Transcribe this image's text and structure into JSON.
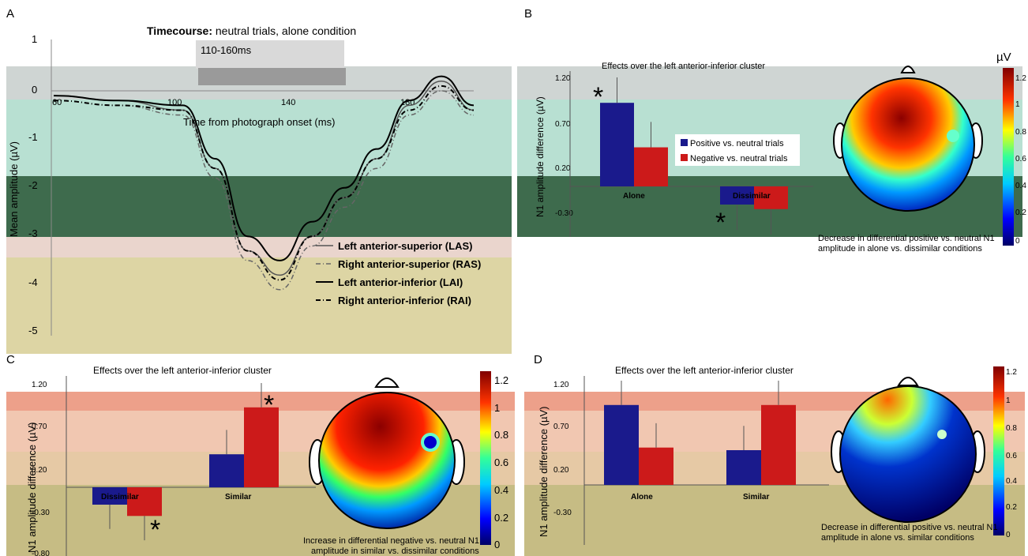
{
  "panels": {
    "A": {
      "label": "A",
      "title_bold": "Timecourse:",
      "title_rest": " neutral trials, alone condition",
      "window_label": "110-160ms",
      "ylabel": "Mean amplitude (µV)",
      "xlabel": "Time from photograph onset (ms)",
      "yticks": [
        "1",
        "0",
        "-1",
        "-2",
        "-3",
        "-4",
        "-5"
      ],
      "xticks": [
        "60",
        "100",
        "140",
        "180"
      ],
      "legend": [
        "Left anterior-superior (LAS)",
        "Right anterior-superior (RAS)",
        "Left anterior-inferior (LAI)",
        "Right anterior-inferior (RAI)"
      ]
    },
    "B": {
      "label": "B",
      "title": "Effects over the left anterior-inferior cluster",
      "ylabel": "N1 amplitude difference (µV)",
      "yticks": [
        "1.20",
        "0.70",
        "0.20",
        "-0.30"
      ],
      "categories": [
        "Alone",
        "Dissimilar"
      ],
      "legend": [
        "Positive vs. neutral trials",
        "Negative vs. neutral trials"
      ],
      "caption_line1": "Decrease in differential positive vs. neutral N1",
      "caption_line2": "amplitude in alone vs. dissimilar conditions",
      "unit": "µV",
      "scale_ticks": [
        "1.2",
        "1",
        "0.8",
        "0.6",
        "0.4",
        "0.2",
        "0"
      ]
    },
    "C": {
      "label": "C",
      "title": "Effects over the left anterior-inferior cluster",
      "ylabel": "N1 amplitude difference (µV)",
      "yticks": [
        "1.20",
        "0.70",
        "0.20",
        "-0.30",
        "-0.80"
      ],
      "categories": [
        "Dissimilar",
        "Similar"
      ],
      "caption_line1": "Increase in differential negative vs. neutral N1",
      "caption_line2": "amplitude in similar vs. dissimilar conditions",
      "scale_ticks": [
        "1.2",
        "1",
        "0.8",
        "0.6",
        "0.4",
        "0.2",
        "0"
      ]
    },
    "D": {
      "label": "D",
      "title": "Effects over the left anterior-inferior cluster",
      "ylabel": "N1 amplitude difference (µV)",
      "yticks": [
        "1.20",
        "0.70",
        "0.20",
        "-0.30"
      ],
      "categories": [
        "Alone",
        "Similar"
      ],
      "caption_line1": "Decrease in differential positive vs. neutral N1",
      "caption_line2": "amplitude in alone vs. similar conditions",
      "scale_ticks": [
        "1.2",
        "1",
        "0.8",
        "0.6",
        "0.4",
        "0.2",
        "0"
      ]
    }
  },
  "colors": {
    "positive": "#1a1a8c",
    "negative": "#cc1a1a"
  },
  "chart_data": [
    {
      "type": "line",
      "panel": "A",
      "x": [
        60,
        80,
        100,
        110,
        120,
        130,
        140,
        150,
        160,
        170,
        180,
        190
      ],
      "ylim": [
        -5,
        1
      ],
      "series": [
        {
          "name": "Left anterior-superior (LAS)",
          "values": [
            -0.1,
            -0.2,
            -0.4,
            -1.6,
            -3.3,
            -3.8,
            -3.0,
            -2.2,
            -1.4,
            -0.3,
            0.2,
            -0.4
          ]
        },
        {
          "name": "Right anterior-superior (RAS)",
          "values": [
            -0.2,
            -0.3,
            -0.5,
            -1.8,
            -3.5,
            -4.1,
            -3.2,
            -2.4,
            -1.6,
            -0.5,
            0.0,
            -0.5
          ]
        },
        {
          "name": "Left anterior-inferior (LAI)",
          "values": [
            -0.1,
            -0.2,
            -0.3,
            -1.4,
            -3.0,
            -3.5,
            -2.7,
            -2.0,
            -1.2,
            -0.2,
            0.3,
            -0.3
          ]
        },
        {
          "name": "Right anterior-inferior (RAI)",
          "values": [
            -0.2,
            -0.3,
            -0.4,
            -1.6,
            -3.3,
            -3.9,
            -3.0,
            -2.2,
            -1.4,
            -0.4,
            0.1,
            -0.4
          ]
        }
      ]
    },
    {
      "type": "bar",
      "panel": "B",
      "categories": [
        "Alone",
        "Dissimilar"
      ],
      "ylim": [
        -0.6,
        1.3
      ],
      "series": [
        {
          "name": "Positive vs. neutral trials",
          "values": [
            0.92,
            -0.2
          ]
        },
        {
          "name": "Negative vs. neutral trials",
          "values": [
            0.43,
            -0.25
          ]
        }
      ]
    },
    {
      "type": "bar",
      "panel": "C",
      "categories": [
        "Dissimilar",
        "Similar"
      ],
      "ylim": [
        -0.8,
        1.3
      ],
      "series": [
        {
          "values": [
            -0.2,
            0.38
          ]
        },
        {
          "values": [
            -0.33,
            0.92
          ]
        }
      ]
    },
    {
      "type": "bar",
      "panel": "D",
      "categories": [
        "Alone",
        "Similar"
      ],
      "ylim": [
        -0.6,
        1.3
      ],
      "series": [
        {
          "values": [
            0.92,
            0.4
          ]
        },
        {
          "values": [
            0.43,
            0.92
          ]
        }
      ]
    }
  ]
}
